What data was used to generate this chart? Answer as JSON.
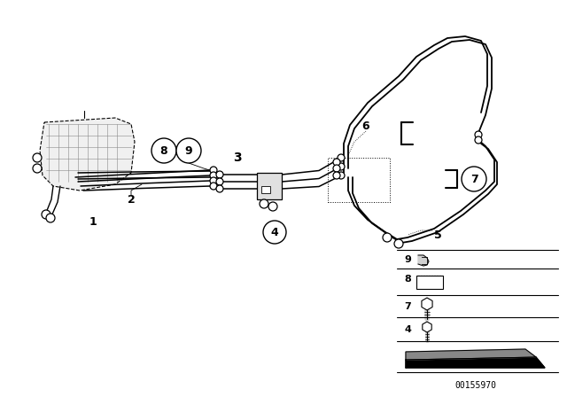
{
  "bg_color": "#ffffff",
  "line_color": "#000000",
  "diagram_code": "00155970",
  "fig_width": 6.4,
  "fig_height": 4.48,
  "dpi": 100,
  "lw_hose": 1.1,
  "lw_thin": 0.7
}
